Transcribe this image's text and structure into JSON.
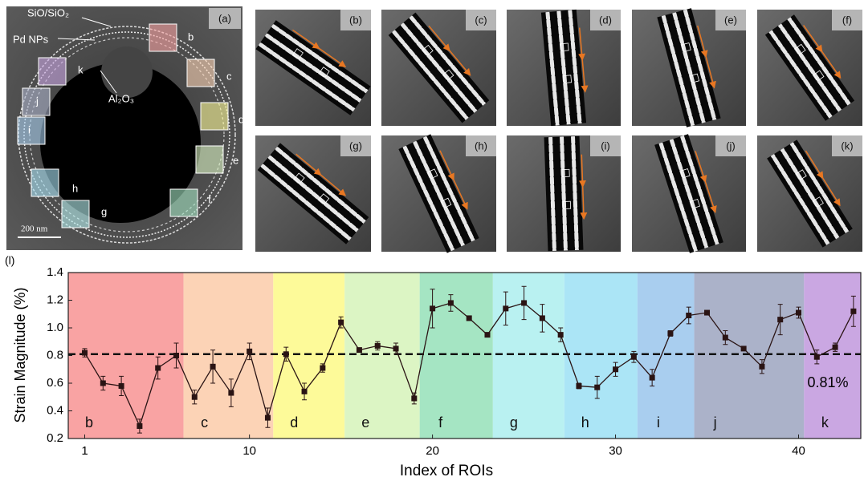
{
  "figure": {
    "panel_a": {
      "label": "(a)",
      "annotations": [
        "SiO/SiO₂",
        "Pd NPs",
        "Al₂O₃"
      ],
      "scale_bar": "200 nm",
      "roi_labels": [
        "b",
        "c",
        "d",
        "e",
        "f",
        "g",
        "h",
        "i",
        "j",
        "k"
      ]
    },
    "panels": [
      "(b)",
      "(c)",
      "(d)",
      "(e)",
      "(f)",
      "(g)",
      "(h)",
      "(i)",
      "(j)",
      "(k)"
    ],
    "chart_label": "(l)"
  },
  "chart_data": {
    "type": "errorbar-line",
    "xlabel": "Index of ROIs",
    "ylabel": "Strain Magnitude (%)",
    "xlim": [
      0.1,
      43.4
    ],
    "xticks": [
      1,
      10,
      20,
      30,
      40
    ],
    "ylim": [
      0.2,
      1.4
    ],
    "yticks": [
      0.2,
      0.4,
      0.6,
      0.8,
      {
        "value": 1,
        "label": "1.0"
      },
      1.2,
      1.4
    ],
    "x": [
      1,
      2,
      3,
      4,
      5,
      6,
      7,
      8,
      9,
      10,
      11,
      12,
      13,
      14,
      15,
      16,
      17,
      18,
      19,
      20,
      21,
      22,
      23,
      24,
      25,
      26,
      27,
      28,
      29,
      30,
      31,
      32,
      33,
      34,
      35,
      36,
      37,
      38,
      39,
      40,
      41,
      42,
      43
    ],
    "series": [
      {
        "color": "#2a1414",
        "values": [
          0.82,
          0.6,
          0.58,
          0.29,
          0.71,
          0.8,
          0.5,
          0.72,
          0.53,
          0.83,
          0.35,
          0.81,
          0.54,
          0.71,
          1.04,
          0.84,
          0.87,
          0.85,
          0.49,
          1.14,
          1.18,
          1.07,
          0.95,
          1.14,
          1.18,
          1.07,
          0.95,
          0.58,
          0.57,
          0.7,
          0.79,
          0.64,
          0.96,
          1.09,
          1.11,
          0.93,
          0.85,
          0.72,
          1.06,
          1.11,
          0.79,
          0.86,
          1.12
        ],
        "errors": [
          0.03,
          0.05,
          0.07,
          0.05,
          0.08,
          0.09,
          0.05,
          0.12,
          0.1,
          0.06,
          0.07,
          0.05,
          0.06,
          0.03,
          0.04,
          0.01,
          0.03,
          0.04,
          0.04,
          0.14,
          0.06,
          0.01,
          0.01,
          0.12,
          0.12,
          0.1,
          0.05,
          0.02,
          0.08,
          0.05,
          0.04,
          0.06,
          0.02,
          0.06,
          0.01,
          0.05,
          0.01,
          0.05,
          0.11,
          0.04,
          0.05,
          0.03,
          0.11
        ]
      }
    ],
    "reference_line": {
      "value": 0.81,
      "label": "0.81%"
    },
    "regions": [
      {
        "label": "b",
        "start": 0.1,
        "end": 6.4,
        "color": "#f9a3a3"
      },
      {
        "label": "c",
        "start": 6.4,
        "end": 11.3,
        "color": "#fcd3b6"
      },
      {
        "label": "d",
        "start": 11.3,
        "end": 15.2,
        "color": "#fdfa99"
      },
      {
        "label": "e",
        "start": 15.2,
        "end": 19.3,
        "color": "#dcf5c4"
      },
      {
        "label": "f",
        "start": 19.3,
        "end": 23.3,
        "color": "#a5e5c3"
      },
      {
        "label": "g",
        "start": 23.3,
        "end": 27.2,
        "color": "#b9f1f1"
      },
      {
        "label": "h",
        "start": 27.2,
        "end": 31.2,
        "color": "#abe5f6"
      },
      {
        "label": "i",
        "start": 31.2,
        "end": 34.3,
        "color": "#a9ceef"
      },
      {
        "label": "j",
        "start": 34.3,
        "end": 40.3,
        "color": "#abb2c9"
      },
      {
        "label": "k",
        "start": 40.3,
        "end": 43.4,
        "color": "#caa7e2"
      }
    ]
  }
}
